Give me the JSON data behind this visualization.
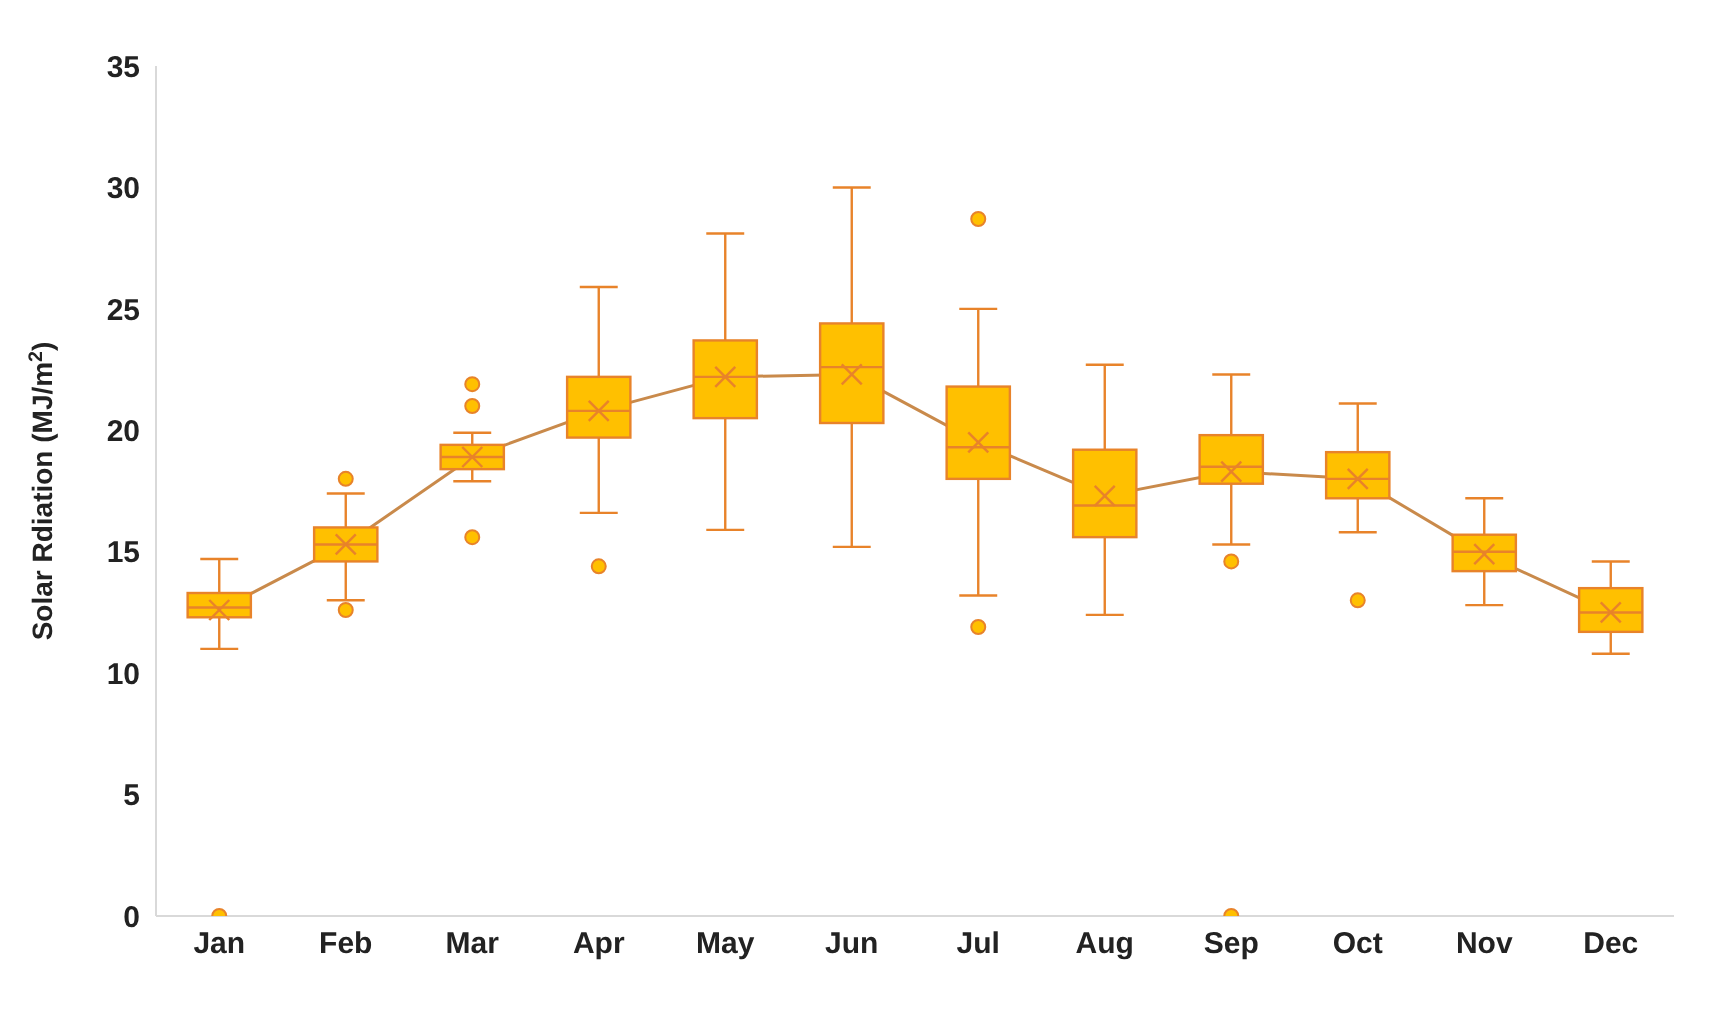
{
  "chart_data": {
    "type": "box",
    "ylabel": "Solar Rdiation (MJ/m$^{2}$)",
    "categories": [
      "Jan",
      "Feb",
      "Mar",
      "Apr",
      "May",
      "Jun",
      "Jul",
      "Aug",
      "Sep",
      "Oct",
      "Nov",
      "Dec"
    ],
    "ylim": [
      0,
      35
    ],
    "yticks": [
      0,
      5,
      10,
      15,
      20,
      25,
      30,
      35
    ],
    "grid": false,
    "legend": false,
    "series": [
      {
        "color": "#ffc000",
        "boxes": [
          {
            "low": 11.0,
            "q1": 12.3,
            "median": 12.7,
            "q3": 13.3,
            "high": 14.7,
            "mean": 12.6,
            "outliers": [
              0
            ]
          },
          {
            "low": 13.0,
            "q1": 14.6,
            "median": 15.3,
            "q3": 16.0,
            "high": 17.4,
            "mean": 15.3,
            "outliers": [
              18.0,
              12.6
            ]
          },
          {
            "low": 17.9,
            "q1": 18.4,
            "median": 18.9,
            "q3": 19.4,
            "high": 19.9,
            "mean": 18.9,
            "outliers": [
              21.9,
              21.0,
              15.6
            ]
          },
          {
            "low": 16.6,
            "q1": 19.7,
            "median": 20.8,
            "q3": 22.2,
            "high": 25.9,
            "mean": 20.8,
            "outliers": [
              14.4
            ]
          },
          {
            "low": 15.9,
            "q1": 20.5,
            "median": 22.2,
            "q3": 23.7,
            "high": 28.1,
            "mean": 22.2
          },
          {
            "low": 15.2,
            "q1": 20.3,
            "median": 22.6,
            "q3": 24.4,
            "high": 30.0,
            "mean": 22.3
          },
          {
            "low": 13.2,
            "q1": 18.0,
            "median": 19.3,
            "q3": 21.8,
            "high": 25.0,
            "mean": 19.5,
            "outliers": [
              28.7,
              11.9
            ]
          },
          {
            "low": 12.4,
            "q1": 15.6,
            "median": 16.9,
            "q3": 19.2,
            "high": 22.7,
            "mean": 17.3
          },
          {
            "low": 15.3,
            "q1": 17.8,
            "median": 18.5,
            "q3": 19.8,
            "high": 22.3,
            "mean": 18.3,
            "outliers": [
              14.6,
              0
            ]
          },
          {
            "low": 15.8,
            "q1": 17.2,
            "median": 18.0,
            "q3": 19.1,
            "high": 21.1,
            "mean": 18.0,
            "outliers": [
              13.0
            ]
          },
          {
            "low": 12.8,
            "q1": 14.2,
            "median": 15.0,
            "q3": 15.7,
            "high": 17.2,
            "mean": 14.9
          },
          {
            "low": 10.8,
            "q1": 11.7,
            "median": 12.5,
            "q3": 13.5,
            "high": 14.6,
            "mean": 12.5
          }
        ]
      },
      {
        "type": "line",
        "color": "#c98a4b",
        "values": [
          12.6,
          15.3,
          18.9,
          20.8,
          22.2,
          22.3,
          19.5,
          17.3,
          18.3,
          18.0,
          14.9,
          12.5
        ]
      }
    ]
  }
}
